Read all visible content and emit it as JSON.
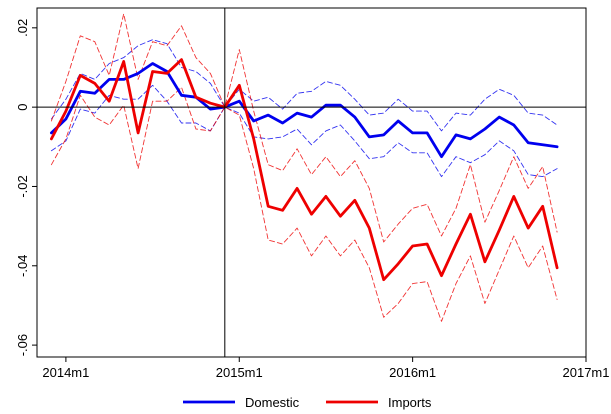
{
  "chart_data": {
    "type": "line",
    "title": "",
    "xlabel": "",
    "ylabel": "",
    "x_ticks": [
      "2014m1",
      "2015m1",
      "2016m1",
      "2017m1"
    ],
    "y_ticks": [
      ".02",
      "0",
      "-.02",
      "-.04",
      "-.06"
    ],
    "xlim": [
      "2013m11",
      "2017m1"
    ],
    "ylim": [
      -0.063,
      0.025
    ],
    "grid": false,
    "reference_lines": {
      "horizontal_at_y": 0,
      "vertical_at_x": "2014m12"
    },
    "legend": {
      "placement": "bottom",
      "entries": [
        "Domestic",
        "Imports"
      ]
    },
    "x": [
      "2013m12",
      "2014m1",
      "2014m2",
      "2014m3",
      "2014m4",
      "2014m5",
      "2014m6",
      "2014m7",
      "2014m8",
      "2014m9",
      "2014m10",
      "2014m11",
      "2014m12",
      "2015m1",
      "2015m2",
      "2015m3",
      "2015m4",
      "2015m5",
      "2015m6",
      "2015m7",
      "2015m8",
      "2015m9",
      "2015m10",
      "2015m11",
      "2015m12",
      "2016m1",
      "2016m2",
      "2016m3",
      "2016m4",
      "2016m5",
      "2016m6",
      "2016m7",
      "2016m8",
      "2016m9",
      "2016m10",
      "2016m11"
    ],
    "series": [
      {
        "name": "Domestic",
        "color": "#0000ee",
        "style": "solid",
        "values": [
          -0.0065,
          -0.003,
          0.004,
          0.0035,
          0.007,
          0.007,
          0.0085,
          0.011,
          0.009,
          0.003,
          0.0025,
          -0.0005,
          0.0,
          0.0015,
          -0.0035,
          -0.002,
          -0.004,
          -0.0015,
          -0.0025,
          0.0005,
          0.0005,
          -0.0025,
          -0.0075,
          -0.007,
          -0.0035,
          -0.0065,
          -0.0065,
          -0.0125,
          -0.007,
          -0.008,
          -0.0055,
          -0.0025,
          -0.0045,
          -0.009,
          -0.0095,
          -0.01
        ]
      },
      {
        "name": "Domestic upper band",
        "color": "#0000ee",
        "style": "dashed",
        "values": [
          -0.003,
          0.002,
          0.0085,
          0.007,
          0.011,
          0.0125,
          0.0155,
          0.017,
          0.016,
          0.01,
          0.009,
          0.006,
          0.0,
          0.0045,
          0.0015,
          0.0025,
          -0.0005,
          0.0035,
          0.004,
          0.0065,
          0.0055,
          0.002,
          -0.002,
          -0.0015,
          0.002,
          -0.001,
          -0.001,
          -0.006,
          -0.0015,
          -0.002,
          0.002,
          0.0045,
          0.003,
          -0.0015,
          -0.002,
          -0.0045
        ]
      },
      {
        "name": "Domestic lower band",
        "color": "#0000ee",
        "style": "dashed",
        "values": [
          -0.011,
          -0.0085,
          -0.0005,
          -0.0015,
          0.003,
          0.002,
          0.002,
          0.0055,
          0.0015,
          -0.004,
          -0.004,
          -0.006,
          0.0,
          -0.0015,
          -0.0075,
          -0.008,
          -0.0075,
          -0.0055,
          -0.0095,
          -0.006,
          -0.0045,
          -0.0085,
          -0.013,
          -0.0125,
          -0.009,
          -0.0115,
          -0.0115,
          -0.0175,
          -0.0125,
          -0.014,
          -0.012,
          -0.0085,
          -0.011,
          -0.017,
          -0.0175,
          -0.0155
        ]
      },
      {
        "name": "Imports",
        "color": "#ee0000",
        "style": "solid",
        "values": [
          -0.008,
          -0.001,
          0.008,
          0.006,
          0.0015,
          0.0115,
          -0.0065,
          0.009,
          0.0085,
          0.012,
          0.0025,
          0.001,
          0.0,
          0.0055,
          -0.008,
          -0.025,
          -0.026,
          -0.0205,
          -0.027,
          -0.0225,
          -0.0275,
          -0.0235,
          -0.0305,
          -0.0435,
          -0.0395,
          -0.035,
          -0.0345,
          -0.0425,
          -0.0345,
          -0.027,
          -0.039,
          -0.031,
          -0.0225,
          -0.0305,
          -0.025,
          -0.0405
        ]
      },
      {
        "name": "Imports upper band",
        "color": "#ee0000",
        "style": "dashed",
        "values": [
          -0.0035,
          0.0065,
          0.018,
          0.0165,
          0.008,
          0.0235,
          0.007,
          0.0165,
          0.0155,
          0.0205,
          0.0125,
          0.0085,
          0.0,
          0.0145,
          -0.001,
          -0.0145,
          -0.016,
          -0.0105,
          -0.017,
          -0.0125,
          -0.0175,
          -0.0135,
          -0.0205,
          -0.034,
          -0.0295,
          -0.0255,
          -0.0245,
          -0.0325,
          -0.0255,
          -0.0145,
          -0.029,
          -0.021,
          -0.0125,
          -0.0205,
          -0.015,
          -0.0315
        ]
      },
      {
        "name": "Imports lower band",
        "color": "#ee0000",
        "style": "dashed",
        "values": [
          -0.0145,
          -0.008,
          0.003,
          -0.0025,
          -0.0045,
          0.0005,
          -0.0155,
          0.0015,
          0.0015,
          0.005,
          -0.0055,
          -0.006,
          0.0,
          -0.002,
          -0.0155,
          -0.0335,
          -0.0345,
          -0.0305,
          -0.0375,
          -0.0325,
          -0.0375,
          -0.0335,
          -0.0405,
          -0.053,
          -0.0495,
          -0.0445,
          -0.044,
          -0.054,
          -0.0445,
          -0.0375,
          -0.0495,
          -0.041,
          -0.0325,
          -0.0405,
          -0.035,
          -0.0485
        ]
      }
    ]
  }
}
